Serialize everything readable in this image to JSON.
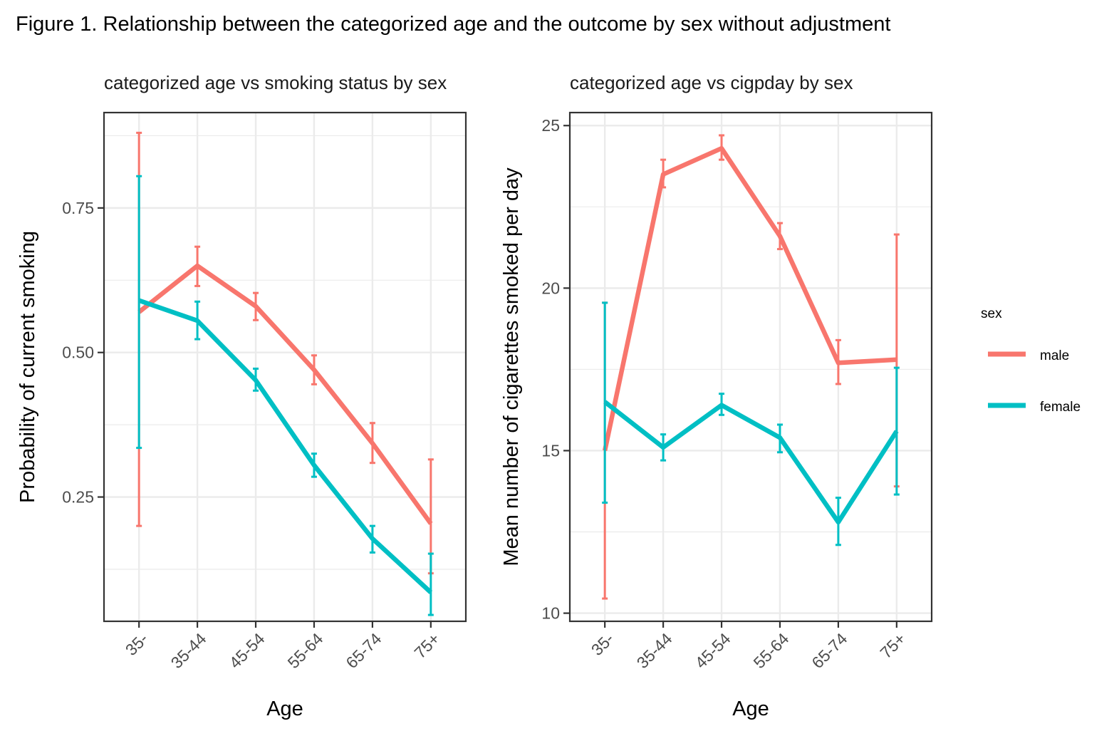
{
  "figure": {
    "title": "Figure 1. Relationship between the categorized age and the outcome by sex without adjustment"
  },
  "legend": {
    "title": "sex",
    "items": [
      {
        "label": "male",
        "color": "#F8766D"
      },
      {
        "label": "female",
        "color": "#00BFC4"
      }
    ]
  },
  "chart_data": [
    {
      "type": "line",
      "title": "categorized age vs smoking status by sex",
      "xlabel": "Age",
      "ylabel": "Probability of current smoking",
      "categories": [
        "35-",
        "35-44",
        "45-54",
        "55-64",
        "65-74",
        "75+"
      ],
      "yticks": [
        0.25,
        0.5,
        0.75
      ],
      "ytick_labels": [
        "0.25",
        "0.50",
        "0.75"
      ],
      "ylim": [
        0.035,
        0.915
      ],
      "grid": true,
      "error_bars": true,
      "series": [
        {
          "name": "male",
          "color": "#F8766D",
          "values": [
            0.57,
            0.65,
            0.58,
            0.47,
            0.343,
            0.204
          ],
          "lower": [
            0.2,
            0.615,
            0.556,
            0.445,
            0.309,
            0.118
          ],
          "upper": [
            0.88,
            0.683,
            0.603,
            0.495,
            0.378,
            0.315
          ]
        },
        {
          "name": "female",
          "color": "#00BFC4",
          "values": [
            0.59,
            0.555,
            0.452,
            0.305,
            0.178,
            0.085
          ],
          "lower": [
            0.335,
            0.523,
            0.434,
            0.285,
            0.154,
            0.046
          ],
          "upper": [
            0.805,
            0.588,
            0.472,
            0.325,
            0.2,
            0.152
          ]
        }
      ]
    },
    {
      "type": "line",
      "title": "categorized age vs cigpday by sex",
      "xlabel": "Age",
      "ylabel": "Mean number of cigarettes smoked per day",
      "categories": [
        "35-",
        "35-44",
        "45-54",
        "55-64",
        "65-74",
        "75+"
      ],
      "yticks": [
        10,
        15,
        20,
        25
      ],
      "ytick_labels": [
        "10",
        "15",
        "20",
        "25"
      ],
      "ylim": [
        9.75,
        25.4
      ],
      "grid": true,
      "error_bars": true,
      "series": [
        {
          "name": "male",
          "color": "#F8766D",
          "values": [
            15.0,
            23.5,
            24.3,
            21.6,
            17.7,
            17.8
          ],
          "lower": [
            10.45,
            23.1,
            23.95,
            21.2,
            17.05,
            13.9
          ],
          "upper": [
            19.55,
            23.95,
            24.7,
            22.0,
            18.4,
            21.65
          ]
        },
        {
          "name": "female",
          "color": "#00BFC4",
          "values": [
            16.5,
            15.1,
            16.4,
            15.4,
            12.8,
            15.6
          ],
          "lower": [
            13.4,
            14.7,
            16.1,
            14.95,
            12.1,
            13.65
          ],
          "upper": [
            19.55,
            15.5,
            16.75,
            15.8,
            13.55,
            17.55
          ]
        }
      ]
    }
  ]
}
